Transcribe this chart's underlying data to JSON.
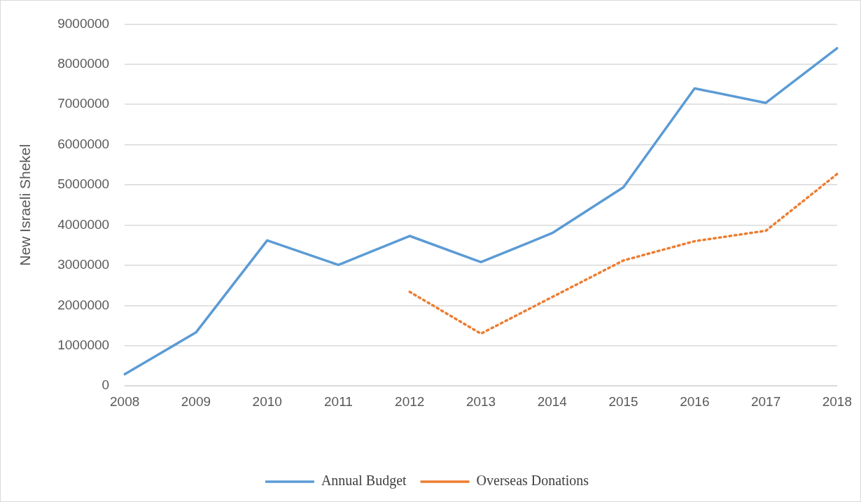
{
  "chart_data": {
    "type": "line",
    "ylabel": "New Israeli Shekel",
    "categories": [
      "2008",
      "2009",
      "2010",
      "2011",
      "2012",
      "2013",
      "2014",
      "2015",
      "2016",
      "2017",
      "2018"
    ],
    "series": [
      {
        "name": "Annual Budget",
        "color": "#5b9bd5",
        "line_style": "solid",
        "values": [
          290000,
          1330000,
          3620000,
          3010000,
          3730000,
          3080000,
          3800000,
          4940000,
          7400000,
          7040000,
          8400000
        ]
      },
      {
        "name": "Overseas Donations",
        "color": "#ed7d31",
        "line_style": "dotted",
        "values": [
          null,
          null,
          null,
          null,
          2340000,
          1300000,
          2210000,
          3120000,
          3600000,
          3860000,
          5270000
        ]
      }
    ],
    "ylim": [
      0,
      9000000
    ],
    "yticks": [
      0,
      1000000,
      2000000,
      3000000,
      4000000,
      5000000,
      6000000,
      7000000,
      8000000,
      9000000
    ],
    "grid": "y",
    "legend": "bottom",
    "marker": "none"
  }
}
